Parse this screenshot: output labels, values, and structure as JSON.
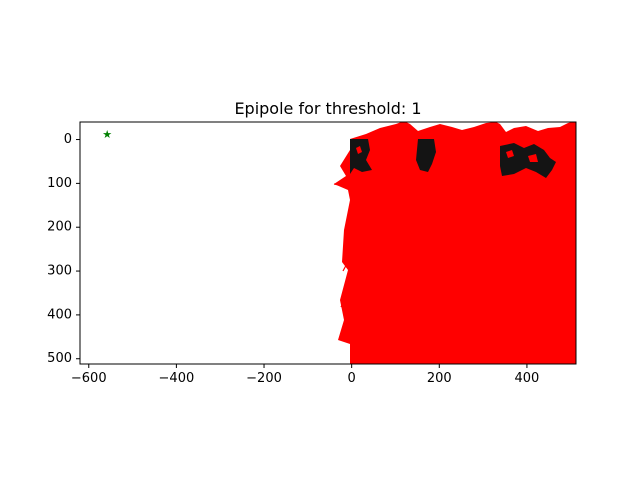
{
  "chart_data": {
    "type": "scatter",
    "title": "Epipole for threshold: 1",
    "xlabel": "",
    "ylabel": "",
    "xlim": [
      -620,
      512
    ],
    "ylim": [
      512,
      -40
    ],
    "y_inverted": true,
    "grid": false,
    "x_ticks": [
      -600,
      -400,
      -200,
      0,
      200,
      400
    ],
    "y_ticks": [
      0,
      100,
      200,
      300,
      400,
      500
    ],
    "x_tick_labels": [
      "−600",
      "−400",
      "−200",
      "0",
      "200",
      "400"
    ],
    "y_tick_labels": [
      "0",
      "100",
      "200",
      "300",
      "400",
      "500"
    ],
    "image": {
      "extent": [
        0,
        512,
        512,
        0
      ],
      "fill_color": "#ff0000",
      "dark_color": "#141414"
    },
    "epipole": {
      "x": -558,
      "y": -12,
      "marker": "star",
      "color": "#008000"
    }
  }
}
